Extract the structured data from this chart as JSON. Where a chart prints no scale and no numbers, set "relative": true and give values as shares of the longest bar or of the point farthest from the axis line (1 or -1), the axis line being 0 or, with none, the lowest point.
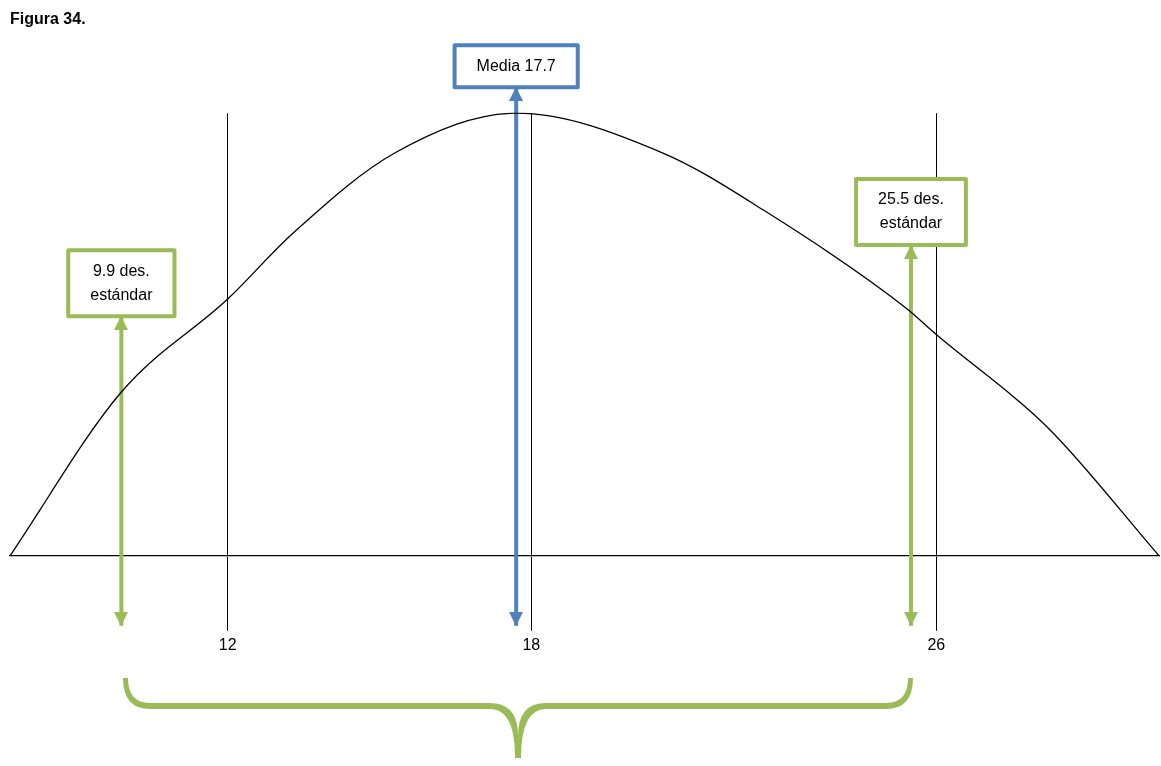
{
  "chart_data": {
    "type": "line",
    "title": "Figura 34.",
    "relative": true,
    "x": [
      7.7,
      9.9,
      12,
      13.3,
      15.3,
      17.7,
      20.6,
      22.6,
      25.4,
      26,
      28.2,
      30.4
    ],
    "series": [
      {
        "color": "#000000",
        "values": [
          0,
          0.37,
          0.58,
          0.73,
          0.91,
          1,
          0.91,
          0.78,
          0.56,
          0.5,
          0.29,
          0
        ]
      }
    ],
    "xlim": [
      7.7,
      30.4
    ],
    "xticks": [
      12,
      18,
      26
    ],
    "grid": "x",
    "legend": false,
    "marker": "none",
    "line_style": "solid",
    "ref_lines": [
      {
        "axis": "x",
        "value": 17.7,
        "label": "Media 17.7",
        "color": "#4f81bd"
      },
      {
        "axis": "x",
        "value": 9.9,
        "label": "9.9 des. estándar",
        "color": "#9bbb59"
      },
      {
        "axis": "x",
        "value": 25.5,
        "label": "25.5 des. estándar",
        "color": "#9bbb59"
      }
    ]
  }
}
